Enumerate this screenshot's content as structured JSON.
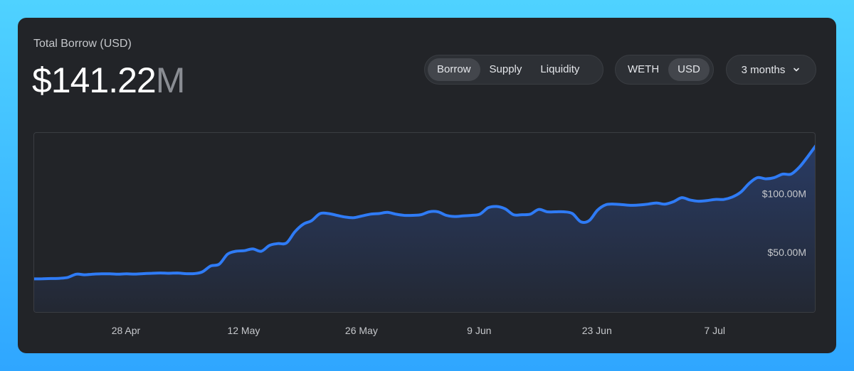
{
  "header": {
    "label": "Total Borrow (USD)",
    "value": "$141.22",
    "value_suffix": "M"
  },
  "controls": {
    "metric_tabs": [
      {
        "label": "Borrow",
        "active": true
      },
      {
        "label": "Supply",
        "active": false
      },
      {
        "label": "Liquidity",
        "active": false
      }
    ],
    "unit_tabs": [
      {
        "label": "WETH",
        "active": false
      },
      {
        "label": "USD",
        "active": true
      }
    ],
    "period": {
      "label": "3 months",
      "icon": "chevron-down-icon"
    }
  },
  "colors": {
    "line": "#2f7bf5",
    "card": "#222428"
  },
  "chart_data": {
    "type": "area",
    "x_unit": "date",
    "y_unit": "USD (millions)",
    "ylim": [
      0,
      150
    ],
    "y_ticks": [
      {
        "value": 50,
        "label": "$50.00M"
      },
      {
        "value": 100,
        "label": "$100.00M"
      }
    ],
    "x_ticks": [
      {
        "date": "2024-04-28",
        "label": "28 Apr"
      },
      {
        "date": "2024-05-12",
        "label": "12 May"
      },
      {
        "date": "2024-05-26",
        "label": "26 May"
      },
      {
        "date": "2024-06-09",
        "label": "9 Jun"
      },
      {
        "date": "2024-06-23",
        "label": "23 Jun"
      },
      {
        "date": "2024-07-07",
        "label": "7 Jul"
      }
    ],
    "grid": false,
    "series": [
      {
        "values": [
          [
            "2024-04-17",
            27.5
          ],
          [
            "2024-04-18",
            27.6
          ],
          [
            "2024-04-19",
            27.8
          ],
          [
            "2024-04-20",
            28.0
          ],
          [
            "2024-04-21",
            28.8
          ],
          [
            "2024-04-22",
            31.5
          ],
          [
            "2024-04-23",
            31.0
          ],
          [
            "2024-04-24",
            31.5
          ],
          [
            "2024-04-25",
            31.8
          ],
          [
            "2024-04-26",
            31.8
          ],
          [
            "2024-04-27",
            31.5
          ],
          [
            "2024-04-28",
            31.8
          ],
          [
            "2024-04-29",
            31.6
          ],
          [
            "2024-04-30",
            32.0
          ],
          [
            "2024-05-01",
            32.3
          ],
          [
            "2024-05-02",
            32.5
          ],
          [
            "2024-05-03",
            32.3
          ],
          [
            "2024-05-04",
            32.5
          ],
          [
            "2024-05-05",
            32.0
          ],
          [
            "2024-05-06",
            32.0
          ],
          [
            "2024-05-07",
            33.5
          ],
          [
            "2024-05-08",
            38.5
          ],
          [
            "2024-05-09",
            40.0
          ],
          [
            "2024-05-10",
            48.5
          ],
          [
            "2024-05-11",
            51.0
          ],
          [
            "2024-05-12",
            51.5
          ],
          [
            "2024-05-13",
            53.0
          ],
          [
            "2024-05-14",
            51.0
          ],
          [
            "2024-05-15",
            56.0
          ],
          [
            "2024-05-16",
            57.5
          ],
          [
            "2024-05-17",
            58.0
          ],
          [
            "2024-05-18",
            67.5
          ],
          [
            "2024-05-19",
            74.0
          ],
          [
            "2024-05-20",
            77.0
          ],
          [
            "2024-05-21",
            83.0
          ],
          [
            "2024-05-22",
            83.0
          ],
          [
            "2024-05-23",
            81.5
          ],
          [
            "2024-05-24",
            80.0
          ],
          [
            "2024-05-25",
            79.5
          ],
          [
            "2024-05-26",
            81.0
          ],
          [
            "2024-05-27",
            82.5
          ],
          [
            "2024-05-28",
            83.0
          ],
          [
            "2024-05-29",
            84.0
          ],
          [
            "2024-05-30",
            82.5
          ],
          [
            "2024-05-31",
            81.5
          ],
          [
            "2024-06-01",
            81.5
          ],
          [
            "2024-06-02",
            82.0
          ],
          [
            "2024-06-03",
            84.5
          ],
          [
            "2024-06-04",
            84.5
          ],
          [
            "2024-06-05",
            81.5
          ],
          [
            "2024-06-06",
            80.5
          ],
          [
            "2024-06-07",
            81.0
          ],
          [
            "2024-06-08",
            81.5
          ],
          [
            "2024-06-09",
            82.5
          ],
          [
            "2024-06-10",
            88.0
          ],
          [
            "2024-06-11",
            89.0
          ],
          [
            "2024-06-12",
            87.0
          ],
          [
            "2024-06-13",
            82.0
          ],
          [
            "2024-06-14",
            82.0
          ],
          [
            "2024-06-15",
            82.5
          ],
          [
            "2024-06-16",
            86.5
          ],
          [
            "2024-06-17",
            84.5
          ],
          [
            "2024-06-18",
            84.5
          ],
          [
            "2024-06-19",
            84.5
          ],
          [
            "2024-06-20",
            83.0
          ],
          [
            "2024-06-21",
            76.0
          ],
          [
            "2024-06-22",
            77.0
          ],
          [
            "2024-06-23",
            86.0
          ],
          [
            "2024-06-24",
            90.5
          ],
          [
            "2024-06-25",
            91.0
          ],
          [
            "2024-06-26",
            90.5
          ],
          [
            "2024-06-27",
            90.0
          ],
          [
            "2024-06-28",
            90.3
          ],
          [
            "2024-06-29",
            91.0
          ],
          [
            "2024-06-30",
            92.0
          ],
          [
            "2024-07-01",
            91.0
          ],
          [
            "2024-07-02",
            93.0
          ],
          [
            "2024-07-03",
            96.5
          ],
          [
            "2024-07-04",
            94.5
          ],
          [
            "2024-07-05",
            93.5
          ],
          [
            "2024-07-06",
            94.0
          ],
          [
            "2024-07-07",
            95.0
          ],
          [
            "2024-07-08",
            95.0
          ],
          [
            "2024-07-09",
            97.0
          ],
          [
            "2024-07-10",
            101.0
          ],
          [
            "2024-07-11",
            108.5
          ],
          [
            "2024-07-12",
            113.5
          ],
          [
            "2024-07-13",
            112.5
          ],
          [
            "2024-07-14",
            113.5
          ],
          [
            "2024-07-15",
            116.5
          ],
          [
            "2024-07-16",
            116.5
          ],
          [
            "2024-07-17",
            122.5
          ],
          [
            "2024-07-18",
            131.5
          ],
          [
            "2024-07-19",
            141.22
          ]
        ]
      }
    ]
  }
}
